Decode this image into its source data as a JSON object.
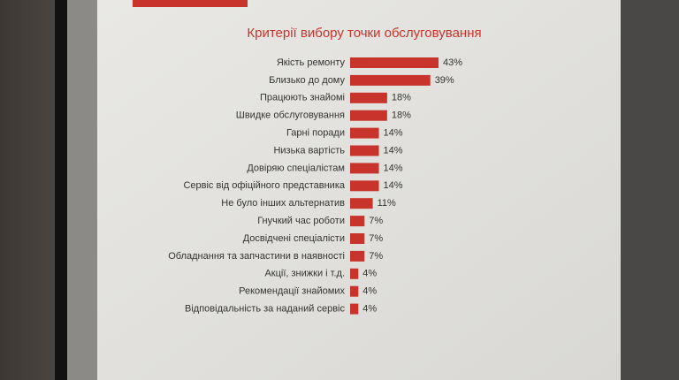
{
  "chart_data": {
    "type": "bar",
    "orientation": "horizontal",
    "title": "Критерії вибору точки обслуговування",
    "categories": [
      "Якість ремонту",
      "Близько до дому",
      "Працюють знайомі",
      "Швидке обслуговування",
      "Гарні поради",
      "Низька вартість",
      "Довіряю спеціалістам",
      "Сервіс від офіційного представника",
      "Не було інших альтернатив",
      "Гнучкий час роботи",
      "Досвідчені спеціалісти",
      "Обладнання та запчастини в наявності",
      "Акції, знижки і т.д.",
      "Рекомендації знайомих",
      "Відповідальність за наданий сервіс"
    ],
    "values": [
      43,
      39,
      18,
      18,
      14,
      14,
      14,
      14,
      11,
      7,
      7,
      7,
      4,
      4,
      4
    ],
    "value_labels": [
      "43%",
      "39%",
      "18%",
      "18%",
      "14%",
      "14%",
      "14%",
      "14%",
      "11%",
      "7%",
      "7%",
      "7%",
      "4%",
      "4%",
      "4%"
    ],
    "color": "#c8342c"
  }
}
